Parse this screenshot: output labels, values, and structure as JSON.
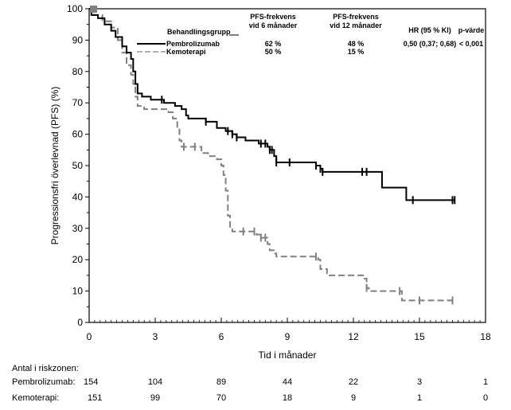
{
  "chart_data": {
    "type": "line",
    "subtype": "kaplan-meier",
    "xlabel": "Tid i månader",
    "ylabel": "Progressionsfri överlevnad (PFS) (%)",
    "xlim": [
      0,
      18
    ],
    "ylim": [
      0,
      100
    ],
    "x_ticks": [
      "0",
      "3",
      "6",
      "9",
      "12",
      "15",
      "18"
    ],
    "y_ticks": [
      "0",
      "10",
      "20",
      "30",
      "40",
      "50",
      "60",
      "70",
      "80",
      "90",
      "100"
    ],
    "grid": false,
    "legend": {
      "placement": "top-right",
      "header": {
        "group": "Behandlingsgrupp",
        "col1": [
          "PFS-frekvens",
          "vid 6 månader"
        ],
        "col2": [
          "PFS-frekvens",
          "vid 12 månader"
        ],
        "col3": "HR (95 % KI)",
        "col4": "p-värde"
      },
      "rows": [
        {
          "name": "Pembrolizumab",
          "pfs6": "62 %",
          "pfs12": "48 %",
          "hr": "0,50 (0,37; 0,68)",
          "p": "< 0,001"
        },
        {
          "name": "Kemoterapi",
          "pfs6": "50 %",
          "pfs12": "15 %",
          "hr": "",
          "p": ""
        }
      ]
    },
    "series": [
      {
        "name": "Pembrolizumab",
        "color": "#000000",
        "style": "solid",
        "steps": [
          [
            0,
            100
          ],
          [
            0.1,
            98
          ],
          [
            0.4,
            97
          ],
          [
            0.7,
            95
          ],
          [
            1.0,
            93
          ],
          [
            1.2,
            91
          ],
          [
            1.5,
            88
          ],
          [
            1.7,
            86
          ],
          [
            1.9,
            84
          ],
          [
            2.0,
            80
          ],
          [
            2.1,
            76
          ],
          [
            2.2,
            73
          ],
          [
            2.4,
            72
          ],
          [
            2.8,
            71
          ],
          [
            3.4,
            70
          ],
          [
            3.9,
            69
          ],
          [
            4.2,
            68
          ],
          [
            4.4,
            66
          ],
          [
            4.5,
            65
          ],
          [
            5.3,
            64
          ],
          [
            5.8,
            62
          ],
          [
            6.2,
            61
          ],
          [
            6.5,
            60
          ],
          [
            6.7,
            59
          ],
          [
            7.1,
            58
          ],
          [
            7.7,
            57
          ],
          [
            8.1,
            56
          ],
          [
            8.2,
            55
          ],
          [
            8.4,
            53
          ],
          [
            8.5,
            51
          ],
          [
            10.3,
            50
          ],
          [
            10.5,
            49
          ],
          [
            10.6,
            48
          ],
          [
            13.3,
            43
          ],
          [
            14.4,
            39
          ],
          [
            16.6,
            39
          ]
        ],
        "censor": [
          3.3,
          5.3,
          6.3,
          6.5,
          6.7,
          7.8,
          8.0,
          8.2,
          8.3,
          8.5,
          9.1,
          10.3,
          10.5,
          10.6,
          12.4,
          12.6,
          14.7,
          16.5,
          16.6
        ]
      },
      {
        "name": "Kemoterapi",
        "color": "#808080",
        "style": "dashed",
        "steps": [
          [
            0,
            100
          ],
          [
            0.2,
            98
          ],
          [
            0.6,
            96
          ],
          [
            1.0,
            94
          ],
          [
            1.3,
            90
          ],
          [
            1.5,
            86
          ],
          [
            1.7,
            82
          ],
          [
            1.9,
            79
          ],
          [
            2.0,
            76
          ],
          [
            2.1,
            72
          ],
          [
            2.2,
            69
          ],
          [
            2.5,
            68
          ],
          [
            3.2,
            68
          ],
          [
            3.6,
            67
          ],
          [
            3.8,
            65
          ],
          [
            4.0,
            62
          ],
          [
            4.1,
            58
          ],
          [
            4.2,
            56
          ],
          [
            5.1,
            54
          ],
          [
            5.4,
            53
          ],
          [
            5.8,
            52
          ],
          [
            6.0,
            50
          ],
          [
            6.1,
            47
          ],
          [
            6.2,
            42
          ],
          [
            6.3,
            34
          ],
          [
            6.4,
            30
          ],
          [
            6.5,
            29
          ],
          [
            7.6,
            28
          ],
          [
            7.8,
            27
          ],
          [
            8.1,
            25
          ],
          [
            8.2,
            23
          ],
          [
            8.4,
            22
          ],
          [
            8.5,
            21
          ],
          [
            10.4,
            20
          ],
          [
            10.5,
            17
          ],
          [
            10.8,
            15
          ],
          [
            12.5,
            14
          ],
          [
            12.6,
            11
          ],
          [
            12.7,
            10
          ],
          [
            14.1,
            10
          ],
          [
            14.2,
            7
          ],
          [
            16.5,
            7
          ]
        ],
        "censor": [
          4.3,
          4.8,
          7.0,
          7.5,
          7.8,
          8.0,
          10.3,
          12.6,
          14.1,
          15.0,
          16.5
        ]
      }
    ],
    "at_risk": {
      "title": "Antal i riskzonen:",
      "times": [
        0,
        3,
        6,
        9,
        12,
        15,
        18
      ],
      "rows": [
        {
          "label": "Pembrolizumab:",
          "values": [
            "154",
            "104",
            "89",
            "44",
            "22",
            "3",
            "1"
          ]
        },
        {
          "label": "Kemoterapi:",
          "values": [
            "151",
            "99",
            "70",
            "18",
            "9",
            "1",
            "0"
          ]
        }
      ]
    }
  }
}
